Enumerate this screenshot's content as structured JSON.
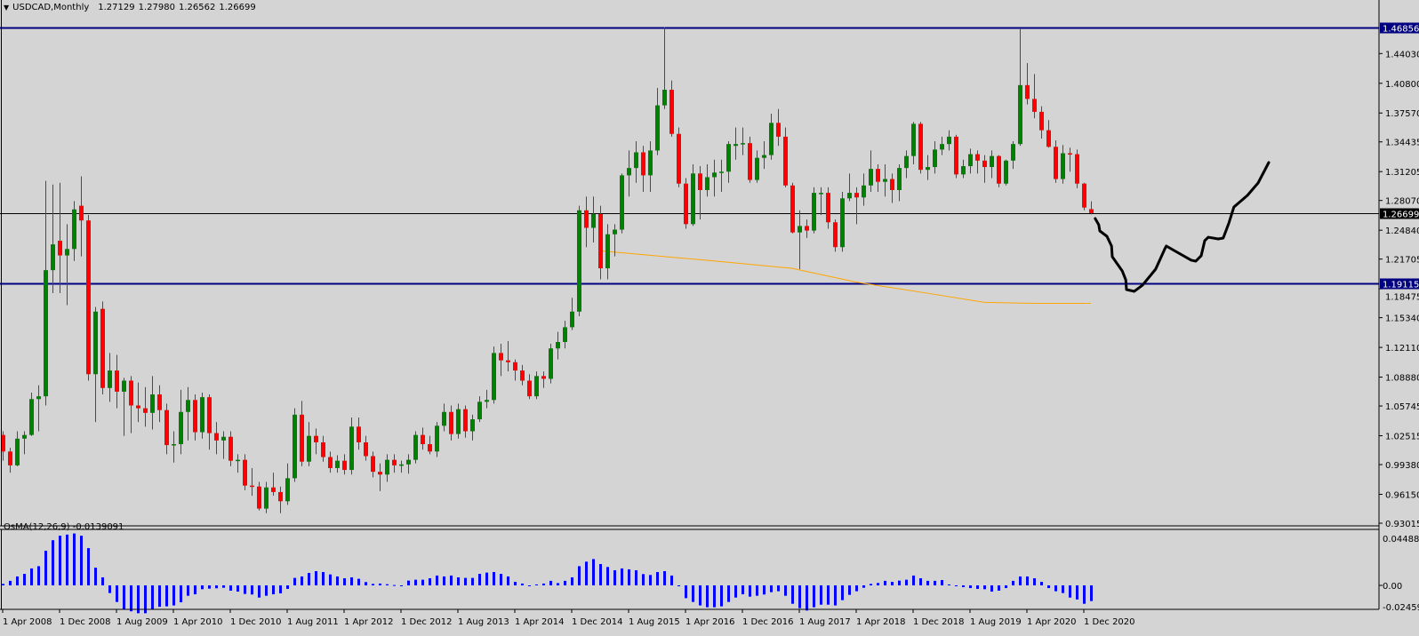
{
  "header": {
    "symbol": "USDCAD,Monthly",
    "open": "1.27129",
    "high": "1.27980",
    "low": "1.26562",
    "close": "1.26699",
    "menu_icon": "triangle-down-icon"
  },
  "indicator": {
    "name": "OsMA(12,26,9)",
    "value": "-0.0139091"
  },
  "colors": {
    "background": "#d4d4d4",
    "bull": "#008000",
    "bear": "#ff0000",
    "level_line": "#000080",
    "ma": "#ffa500",
    "osma": "#0000ff",
    "drawing": "#000000"
  },
  "chart_data": {
    "type": "candlestick",
    "title": "USDCAD,Monthly",
    "first_bar": "Apr 2008",
    "price_axis_ticks": [
      "1.44030",
      "1.40800",
      "1.37570",
      "1.34435",
      "1.31205",
      "1.28070",
      "1.24840",
      "1.21705",
      "1.18475",
      "1.15340",
      "1.12110",
      "1.08880",
      "1.05745",
      "1.02515",
      "0.99380",
      "0.96150",
      "0.93015"
    ],
    "price_range": [
      0.93015,
      1.46856
    ],
    "levels": [
      {
        "value": 1.46856,
        "label": "1.46856",
        "kind": "horizontal-line"
      },
      {
        "value": 1.26699,
        "label": "1.26699",
        "kind": "current-price"
      },
      {
        "value": 1.19115,
        "label": "1.19115",
        "kind": "horizontal-line"
      }
    ],
    "time_labels": [
      "1 Apr 2008",
      "1 Dec 2008",
      "1 Aug 2009",
      "1 Apr 2010",
      "1 Dec 2010",
      "1 Aug 2011",
      "1 Apr 2012",
      "1 Dec 2012",
      "1 Aug 2013",
      "1 Apr 2014",
      "1 Dec 2014",
      "1 Aug 2015",
      "1 Apr 2016",
      "1 Dec 2016",
      "1 Aug 2017",
      "1 Apr 2018",
      "1 Dec 2018",
      "1 Aug 2019",
      "1 Apr 2020",
      "1 Dec 2020"
    ],
    "time_label_step_bars": 8,
    "ohlc": [
      [
        1.026,
        1.03,
        0.998,
        1.008
      ],
      [
        1.008,
        1.012,
        0.985,
        0.993
      ],
      [
        0.993,
        1.03,
        0.992,
        1.022
      ],
      [
        1.022,
        1.03,
        1.005,
        1.026
      ],
      [
        1.026,
        1.072,
        1.025,
        1.065
      ],
      [
        1.065,
        1.08,
        1.03,
        1.068
      ],
      [
        1.068,
        1.302,
        1.058,
        1.205
      ],
      [
        1.205,
        1.298,
        1.18,
        1.233
      ],
      [
        1.237,
        1.3,
        1.18,
        1.221
      ],
      [
        1.221,
        1.255,
        1.167,
        1.228
      ],
      [
        1.228,
        1.28,
        1.215,
        1.271
      ],
      [
        1.275,
        1.307,
        1.22,
        1.259
      ],
      [
        1.259,
        1.265,
        1.085,
        1.092
      ],
      [
        1.092,
        1.165,
        1.04,
        1.16
      ],
      [
        1.163,
        1.171,
        1.07,
        1.077
      ],
      [
        1.077,
        1.115,
        1.062,
        1.096
      ],
      [
        1.096,
        1.113,
        1.055,
        1.073
      ],
      [
        1.073,
        1.088,
        1.025,
        1.085
      ],
      [
        1.085,
        1.09,
        1.028,
        1.058
      ],
      [
        1.058,
        1.083,
        1.04,
        1.055
      ],
      [
        1.055,
        1.078,
        1.035,
        1.05
      ],
      [
        1.05,
        1.09,
        1.032,
        1.07
      ],
      [
        1.07,
        1.08,
        1.04,
        1.053
      ],
      [
        1.053,
        1.06,
        1.005,
        1.015
      ],
      [
        1.015,
        1.03,
        0.996,
        1.016
      ],
      [
        1.016,
        1.075,
        1.005,
        1.051
      ],
      [
        1.051,
        1.078,
        1.02,
        1.064
      ],
      [
        1.064,
        1.07,
        1.02,
        1.029
      ],
      [
        1.029,
        1.072,
        1.022,
        1.067
      ],
      [
        1.067,
        1.07,
        1.01,
        1.028
      ],
      [
        1.028,
        1.04,
        1.005,
        1.02
      ],
      [
        1.02,
        1.03,
        1.0,
        1.024
      ],
      [
        1.024,
        1.03,
        0.992,
        0.998
      ],
      [
        0.998,
        1.005,
        0.985,
        0.999
      ],
      [
        0.999,
        1.005,
        0.966,
        0.971
      ],
      [
        0.971,
        0.99,
        0.96,
        0.97
      ],
      [
        0.97,
        0.975,
        0.944,
        0.946
      ],
      [
        0.946,
        0.975,
        0.941,
        0.969
      ],
      [
        0.969,
        0.985,
        0.96,
        0.964
      ],
      [
        0.964,
        0.97,
        0.941,
        0.954
      ],
      [
        0.954,
        0.995,
        0.95,
        0.979
      ],
      [
        0.979,
        1.055,
        0.975,
        1.048
      ],
      [
        1.048,
        1.063,
        0.992,
        0.997
      ],
      [
        0.997,
        1.04,
        0.992,
        1.025
      ],
      [
        1.025,
        1.033,
        1.005,
        1.018
      ],
      [
        1.018,
        1.025,
        0.997,
        1.002
      ],
      [
        1.002,
        1.008,
        0.985,
        0.99
      ],
      [
        0.99,
        1.004,
        0.985,
        0.998
      ],
      [
        0.998,
        1.005,
        0.983,
        0.988
      ],
      [
        0.988,
        1.045,
        0.983,
        1.035
      ],
      [
        1.035,
        1.045,
        1.01,
        1.018
      ],
      [
        1.018,
        1.025,
        0.998,
        1.003
      ],
      [
        1.003,
        1.008,
        0.98,
        0.986
      ],
      [
        0.986,
        0.995,
        0.965,
        0.983
      ],
      [
        0.983,
        1.005,
        0.975,
        0.999
      ],
      [
        0.999,
        1.005,
        0.985,
        0.993
      ],
      [
        0.993,
        0.998,
        0.985,
        0.994
      ],
      [
        0.994,
        1.005,
        0.984,
        0.999
      ],
      [
        0.999,
        1.03,
        0.995,
        1.026
      ],
      [
        1.026,
        1.034,
        1.01,
        1.016
      ],
      [
        1.016,
        1.025,
        1.005,
        1.008
      ],
      [
        1.008,
        1.04,
        1.002,
        1.036
      ],
      [
        1.036,
        1.06,
        1.03,
        1.051
      ],
      [
        1.051,
        1.058,
        1.02,
        1.027
      ],
      [
        1.027,
        1.06,
        1.022,
        1.054
      ],
      [
        1.054,
        1.058,
        1.023,
        1.03
      ],
      [
        1.03,
        1.048,
        1.02,
        1.043
      ],
      [
        1.043,
        1.068,
        1.04,
        1.062
      ],
      [
        1.062,
        1.075,
        1.055,
        1.064
      ],
      [
        1.064,
        1.122,
        1.06,
        1.115
      ],
      [
        1.115,
        1.125,
        1.09,
        1.107
      ],
      [
        1.107,
        1.128,
        1.095,
        1.105
      ],
      [
        1.105,
        1.108,
        1.085,
        1.096
      ],
      [
        1.096,
        1.102,
        1.08,
        1.085
      ],
      [
        1.085,
        1.092,
        1.065,
        1.068
      ],
      [
        1.068,
        1.095,
        1.065,
        1.09
      ],
      [
        1.09,
        1.095,
        1.077,
        1.087
      ],
      [
        1.087,
        1.125,
        1.082,
        1.12
      ],
      [
        1.12,
        1.138,
        1.108,
        1.127
      ],
      [
        1.127,
        1.15,
        1.12,
        1.143
      ],
      [
        1.143,
        1.175,
        1.14,
        1.16
      ],
      [
        1.16,
        1.275,
        1.155,
        1.27
      ],
      [
        1.27,
        1.285,
        1.23,
        1.251
      ],
      [
        1.251,
        1.285,
        1.235,
        1.266
      ],
      [
        1.266,
        1.275,
        1.195,
        1.207
      ],
      [
        1.207,
        1.255,
        1.195,
        1.244
      ],
      [
        1.244,
        1.255,
        1.22,
        1.249
      ],
      [
        1.249,
        1.31,
        1.245,
        1.308
      ],
      [
        1.308,
        1.335,
        1.285,
        1.316
      ],
      [
        1.316,
        1.345,
        1.3,
        1.333
      ],
      [
        1.333,
        1.34,
        1.29,
        1.308
      ],
      [
        1.308,
        1.345,
        1.29,
        1.335
      ],
      [
        1.335,
        1.403,
        1.33,
        1.384
      ],
      [
        1.384,
        1.4689,
        1.38,
        1.401
      ],
      [
        1.401,
        1.411,
        1.35,
        1.353
      ],
      [
        1.353,
        1.36,
        1.295,
        1.299
      ],
      [
        1.299,
        1.305,
        1.25,
        1.255
      ],
      [
        1.255,
        1.32,
        1.253,
        1.31
      ],
      [
        1.31,
        1.318,
        1.26,
        1.292
      ],
      [
        1.292,
        1.32,
        1.285,
        1.306
      ],
      [
        1.306,
        1.325,
        1.285,
        1.311
      ],
      [
        1.311,
        1.325,
        1.29,
        1.312
      ],
      [
        1.312,
        1.345,
        1.3,
        1.342
      ],
      [
        1.34,
        1.36,
        1.325,
        1.342
      ],
      [
        1.342,
        1.36,
        1.33,
        1.343
      ],
      [
        1.343,
        1.35,
        1.3,
        1.303
      ],
      [
        1.303,
        1.335,
        1.3,
        1.327
      ],
      [
        1.327,
        1.345,
        1.315,
        1.33
      ],
      [
        1.33,
        1.375,
        1.325,
        1.365
      ],
      [
        1.365,
        1.38,
        1.34,
        1.35
      ],
      [
        1.35,
        1.36,
        1.295,
        1.297
      ],
      [
        1.297,
        1.3,
        1.245,
        1.246
      ],
      [
        1.246,
        1.27,
        1.206,
        1.253
      ],
      [
        1.253,
        1.26,
        1.24,
        1.248
      ],
      [
        1.248,
        1.295,
        1.245,
        1.289
      ],
      [
        1.288,
        1.295,
        1.265,
        1.289
      ],
      [
        1.289,
        1.295,
        1.25,
        1.257
      ],
      [
        1.257,
        1.26,
        1.225,
        1.23
      ],
      [
        1.23,
        1.29,
        1.225,
        1.283
      ],
      [
        1.283,
        1.31,
        1.28,
        1.289
      ],
      [
        1.289,
        1.295,
        1.255,
        1.284
      ],
      [
        1.284,
        1.31,
        1.275,
        1.297
      ],
      [
        1.297,
        1.335,
        1.29,
        1.315
      ],
      [
        1.315,
        1.32,
        1.29,
        1.301
      ],
      [
        1.301,
        1.32,
        1.285,
        1.304
      ],
      [
        1.304,
        1.31,
        1.278,
        1.292
      ],
      [
        1.292,
        1.32,
        1.28,
        1.316
      ],
      [
        1.316,
        1.335,
        1.305,
        1.329
      ],
      [
        1.329,
        1.366,
        1.32,
        1.364
      ],
      [
        1.364,
        1.366,
        1.31,
        1.314
      ],
      [
        1.314,
        1.33,
        1.303,
        1.317
      ],
      [
        1.317,
        1.345,
        1.31,
        1.336
      ],
      [
        1.336,
        1.35,
        1.33,
        1.342
      ],
      [
        1.342,
        1.357,
        1.335,
        1.35
      ],
      [
        1.35,
        1.352,
        1.305,
        1.309
      ],
      [
        1.309,
        1.325,
        1.305,
        1.318
      ],
      [
        1.318,
        1.337,
        1.31,
        1.331
      ],
      [
        1.331,
        1.335,
        1.31,
        1.324
      ],
      [
        1.324,
        1.33,
        1.3,
        1.317
      ],
      [
        1.317,
        1.335,
        1.305,
        1.329
      ],
      [
        1.329,
        1.33,
        1.295,
        1.299
      ],
      [
        1.299,
        1.325,
        1.297,
        1.324
      ],
      [
        1.324,
        1.345,
        1.315,
        1.342
      ],
      [
        1.342,
        1.4667,
        1.34,
        1.406
      ],
      [
        1.406,
        1.43,
        1.385,
        1.391
      ],
      [
        1.391,
        1.418,
        1.37,
        1.377
      ],
      [
        1.377,
        1.383,
        1.348,
        1.357
      ],
      [
        1.357,
        1.368,
        1.338,
        1.339
      ],
      [
        1.339,
        1.346,
        1.3,
        1.304
      ],
      [
        1.304,
        1.341,
        1.299,
        1.332
      ],
      [
        1.332,
        1.338,
        1.312,
        1.331
      ],
      [
        1.331,
        1.336,
        1.294,
        1.299
      ],
      [
        1.299,
        1.3,
        1.27,
        1.273
      ],
      [
        1.27129,
        1.2798,
        1.26562,
        1.26699
      ]
    ],
    "moving_average": [
      [
        84,
        1.226
      ],
      [
        100,
        1.215
      ],
      [
        111,
        1.207
      ],
      [
        120,
        1.192
      ],
      [
        130,
        1.18
      ],
      [
        138,
        1.17
      ],
      [
        145,
        1.169
      ],
      [
        153,
        1.169
      ]
    ],
    "drawing_path": [
      [
        153.6,
        1.2611
      ],
      [
        154.1,
        1.2543
      ],
      [
        154.25,
        1.2476
      ],
      [
        155.25,
        1.2418
      ],
      [
        155.9,
        1.2312
      ],
      [
        156.0,
        1.2196
      ],
      [
        157.4,
        1.2042
      ],
      [
        157.9,
        1.1945
      ],
      [
        158.0,
        1.1839
      ],
      [
        159.1,
        1.182
      ],
      [
        160.25,
        1.1887
      ],
      [
        162.1,
        1.2061
      ],
      [
        163.4,
        1.2283
      ],
      [
        163.6,
        1.2312
      ],
      [
        167.1,
        1.2158
      ],
      [
        167.75,
        1.2148
      ],
      [
        168.5,
        1.2206
      ],
      [
        169.0,
        1.237
      ],
      [
        169.5,
        1.2408
      ],
      [
        170.9,
        1.2389
      ],
      [
        171.6,
        1.2399
      ],
      [
        172.4,
        1.2563
      ],
      [
        173.1,
        1.2736
      ],
      [
        175.0,
        1.2862
      ],
      [
        176.5,
        1.2997
      ],
      [
        178.0,
        1.3219
      ]
    ],
    "osma": {
      "axis_labels": [
        "0.044883",
        "0.00",
        "-0.024592"
      ],
      "range": [
        -0.024592,
        0.044883
      ],
      "values": [
        0.0013,
        0.004,
        0.0079,
        0.0102,
        0.015,
        0.017,
        0.0307,
        0.04,
        0.044,
        0.045,
        0.046,
        0.044,
        0.033,
        0.0157,
        0.0071,
        -0.0068,
        -0.0147,
        -0.021,
        -0.023,
        -0.0247,
        -0.0247,
        -0.021,
        -0.019,
        -0.0186,
        -0.0178,
        -0.015,
        -0.0092,
        -0.0079,
        -0.0034,
        -0.0029,
        -0.0026,
        -0.0021,
        -0.0047,
        -0.0055,
        -0.0076,
        -0.0081,
        -0.0108,
        -0.0092,
        -0.0079,
        -0.0071,
        -0.0031,
        0.0066,
        0.0079,
        0.011,
        0.0126,
        0.0118,
        0.0097,
        0.0079,
        0.0063,
        0.0071,
        0.0058,
        0.0029,
        0.0013,
        0.0016,
        0.001,
        0.0003,
        -0.0003,
        0.0042,
        0.005,
        0.005,
        0.0063,
        0.0087,
        0.0079,
        0.0087,
        0.0071,
        0.0066,
        0.0066,
        0.0102,
        0.0113,
        0.0118,
        0.0102,
        0.0079,
        0.0031,
        0.0016,
        -0.0003,
        0.0008,
        0.0016,
        0.004,
        0.002,
        0.004,
        0.0071,
        0.017,
        0.021,
        0.0233,
        0.0189,
        0.0163,
        0.0134,
        0.015,
        0.0142,
        0.0134,
        0.01,
        0.0092,
        0.0118,
        0.0126,
        0.0087,
        -0.0008,
        -0.0113,
        -0.0147,
        -0.0178,
        -0.0194,
        -0.0194,
        -0.0186,
        -0.0147,
        -0.0108,
        -0.0079,
        -0.01,
        -0.0092,
        -0.0081,
        -0.006,
        -0.0052,
        -0.0092,
        -0.0163,
        -0.0202,
        -0.0223,
        -0.0194,
        -0.0171,
        -0.0171,
        -0.0178,
        -0.0131,
        -0.0084,
        -0.0052,
        -0.0021,
        0.0013,
        0.0021,
        0.004,
        0.0031,
        0.0042,
        0.005,
        0.0087,
        0.0063,
        0.004,
        0.004,
        0.0047,
        0.0008,
        -0.0008,
        -0.0016,
        -0.0024,
        -0.0031,
        -0.0034,
        -0.0055,
        -0.0047,
        -0.0024,
        0.004,
        0.0079,
        0.0079,
        0.0063,
        0.0031,
        -0.0024,
        -0.0052,
        -0.0068,
        -0.0108,
        -0.0125,
        -0.0163,
        -0.0139
      ]
    }
  }
}
